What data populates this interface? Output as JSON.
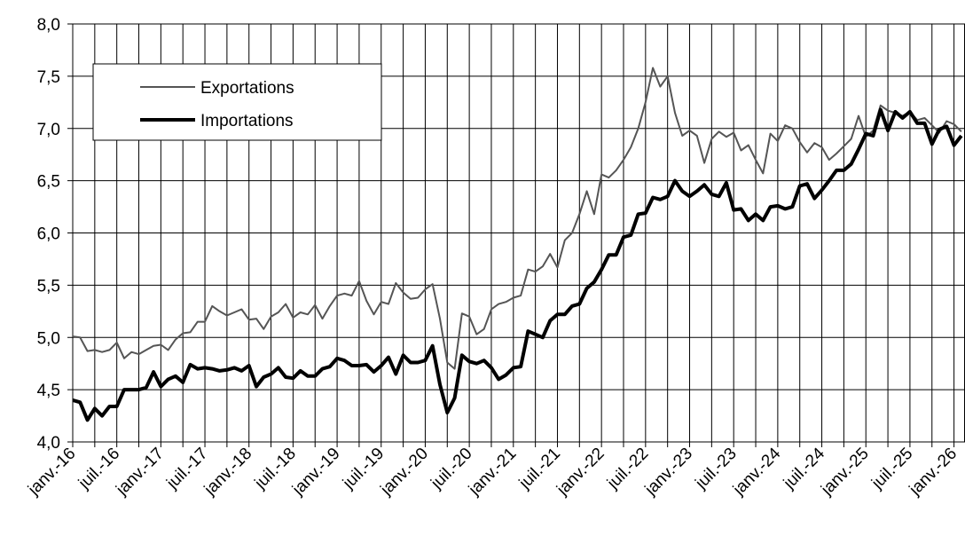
{
  "chart_data": {
    "type": "line",
    "categories": [
      "janv.-16",
      null,
      null,
      null,
      null,
      null,
      "juil.-16",
      null,
      null,
      null,
      null,
      null,
      "janv.-17",
      null,
      null,
      null,
      null,
      null,
      "juil.-17",
      null,
      null,
      null,
      null,
      null,
      "janv.-18",
      null,
      null,
      null,
      null,
      null,
      "juil.-18",
      null,
      null,
      null,
      null,
      null,
      "janv.-19",
      null,
      null,
      null,
      null,
      null,
      "juil.-19",
      null,
      null,
      null,
      null,
      null,
      "janv.-20",
      null,
      null,
      null,
      null,
      null,
      "juil.-20",
      null,
      null,
      null,
      null,
      null,
      "janv.-21",
      null,
      null,
      null,
      null,
      null,
      "juil.-21",
      null,
      null,
      null,
      null,
      null,
      "janv.-22",
      null,
      null,
      null,
      null,
      null,
      "juil.-22",
      null,
      null,
      null,
      null,
      null,
      "janv.-23",
      null,
      null,
      null,
      null,
      null,
      "juil.-23",
      null,
      null,
      null,
      null,
      null,
      "janv.-24",
      null,
      null,
      null,
      null,
      null,
      "juil.-24",
      null,
      null,
      null,
      null,
      null,
      "janv.-25",
      null,
      null,
      null,
      null,
      null,
      "juil.-25",
      null,
      null,
      null,
      null,
      null,
      "janv.-26",
      null
    ],
    "series": [
      {
        "name": "Exportations",
        "color": "#555555",
        "values": [
          5.01,
          5.0,
          4.87,
          4.88,
          4.86,
          4.88,
          4.95,
          4.8,
          4.86,
          4.84,
          4.88,
          4.92,
          4.93,
          4.88,
          4.98,
          5.04,
          5.05,
          5.15,
          5.15,
          5.3,
          5.25,
          5.21,
          5.24,
          5.27,
          5.17,
          5.18,
          5.08,
          5.2,
          5.24,
          5.32,
          5.19,
          5.24,
          5.22,
          5.31,
          5.18,
          5.3,
          5.4,
          5.42,
          5.4,
          5.54,
          5.35,
          5.22,
          5.34,
          5.32,
          5.52,
          5.43,
          5.37,
          5.38,
          5.46,
          5.51,
          5.18,
          4.76,
          4.7,
          5.23,
          5.2,
          5.03,
          5.08,
          5.27,
          5.32,
          5.34,
          5.38,
          5.4,
          5.65,
          5.63,
          5.68,
          5.8,
          5.67,
          5.93,
          6.0,
          6.18,
          6.4,
          6.18,
          6.56,
          6.53,
          6.6,
          6.7,
          6.82,
          7.0,
          7.25,
          7.58,
          7.4,
          7.5,
          7.15,
          6.93,
          6.98,
          6.93,
          6.67,
          6.9,
          6.97,
          6.92,
          6.96,
          6.79,
          6.84,
          6.7,
          6.57,
          6.95,
          6.88,
          7.03,
          7.0,
          6.87,
          6.77,
          6.86,
          6.82,
          6.7,
          6.76,
          6.83,
          6.9,
          7.12,
          6.92,
          6.98,
          7.22,
          7.17,
          7.15,
          7.12,
          7.16,
          7.08,
          7.1,
          7.03,
          6.96,
          7.07,
          7.04,
          6.97
        ]
      },
      {
        "name": "Importations",
        "color": "#000000",
        "values": [
          4.4,
          4.38,
          4.21,
          4.32,
          4.25,
          4.34,
          4.34,
          4.5,
          4.5,
          4.5,
          4.52,
          4.67,
          4.53,
          4.6,
          4.63,
          4.57,
          4.74,
          4.7,
          4.71,
          4.7,
          4.68,
          4.69,
          4.71,
          4.68,
          4.73,
          4.53,
          4.62,
          4.65,
          4.71,
          4.62,
          4.61,
          4.68,
          4.63,
          4.63,
          4.7,
          4.72,
          4.8,
          4.78,
          4.73,
          4.73,
          4.74,
          4.67,
          4.73,
          4.81,
          4.65,
          4.83,
          4.76,
          4.76,
          4.78,
          4.92,
          4.55,
          4.28,
          4.42,
          4.83,
          4.77,
          4.75,
          4.78,
          4.71,
          4.6,
          4.64,
          4.71,
          4.72,
          5.06,
          5.03,
          5.0,
          5.16,
          5.22,
          5.22,
          5.3,
          5.32,
          5.47,
          5.53,
          5.65,
          5.79,
          5.79,
          5.96,
          5.98,
          6.18,
          6.19,
          6.34,
          6.32,
          6.35,
          6.5,
          6.4,
          6.35,
          6.4,
          6.46,
          6.37,
          6.35,
          6.48,
          6.22,
          6.23,
          6.12,
          6.18,
          6.12,
          6.25,
          6.26,
          6.23,
          6.25,
          6.45,
          6.47,
          6.33,
          6.41,
          6.5,
          6.6,
          6.6,
          6.66,
          6.8,
          6.95,
          6.93,
          7.18,
          6.98,
          7.16,
          7.1,
          7.16,
          7.05,
          7.05,
          6.85,
          6.99,
          7.02,
          6.84,
          6.93
        ]
      }
    ],
    "ylim": [
      4,
      8
    ],
    "yticks": [
      {
        "value": 4,
        "label": "4,0"
      },
      {
        "value": 4.5,
        "label": "4,5"
      },
      {
        "value": 5,
        "label": "5,0"
      },
      {
        "value": 5.5,
        "label": "5,5"
      },
      {
        "value": 6,
        "label": "6,0"
      },
      {
        "value": 6.5,
        "label": "6,5"
      },
      {
        "value": 7,
        "label": "7,0"
      },
      {
        "value": 7.5,
        "label": "7,5"
      },
      {
        "value": 8,
        "label": "8,0"
      }
    ],
    "grid": true
  }
}
